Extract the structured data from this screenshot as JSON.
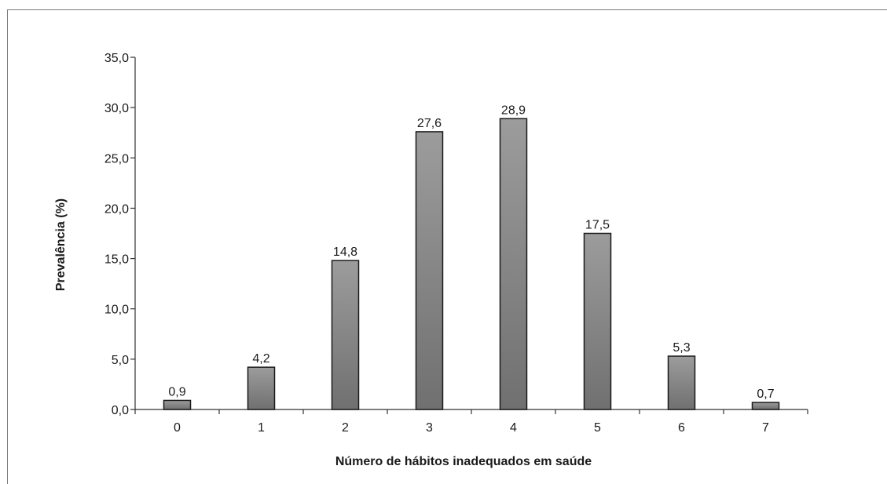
{
  "chart_data": {
    "type": "bar",
    "title": "",
    "xlabel": "Número de hábitos inadequados em saúde",
    "ylabel": "Prevalência (%)",
    "categories": [
      "0",
      "1",
      "2",
      "3",
      "4",
      "5",
      "6",
      "7"
    ],
    "values": [
      0.9,
      4.2,
      14.8,
      27.6,
      28.9,
      17.5,
      5.3,
      0.7
    ],
    "value_labels": [
      "0,9",
      "4,2",
      "14,8",
      "27,6",
      "28,9",
      "17,5",
      "5,3",
      "0,7"
    ],
    "ylim": [
      0,
      35
    ],
    "yticks": [
      0,
      5,
      10,
      15,
      20,
      25,
      30,
      35
    ],
    "ytick_labels": [
      "0,0",
      "5,0",
      "10,0",
      "15,0",
      "20,0",
      "25,0",
      "30,0",
      "35,0"
    ],
    "grid": false,
    "legend": "none",
    "colors": {
      "bar_light": "#9c9c9c",
      "bar_dark": "#707070",
      "bar_border": "#1a1a1a",
      "axis": "#333333",
      "frame": "#7a7a7a"
    }
  }
}
